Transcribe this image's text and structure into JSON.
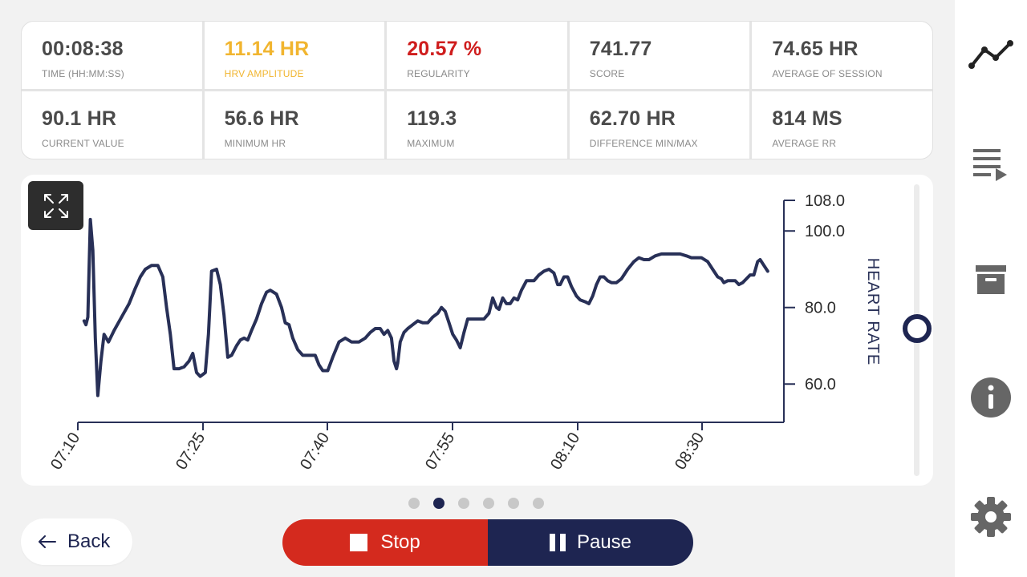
{
  "stats": [
    {
      "value": "00:08:38",
      "label": "TIME (HH:MM:SS)"
    },
    {
      "value": "11.14 HR",
      "label": "HRV AMPLITUDE"
    },
    {
      "value": "20.57 %",
      "label": "REGULARITY"
    },
    {
      "value": "741.77",
      "label": "SCORE"
    },
    {
      "value": "74.65 HR",
      "label": "AVERAGE OF SESSION"
    },
    {
      "value": "90.1 HR",
      "label": "CURRENT VALUE"
    },
    {
      "value": "56.6 HR",
      "label": "MINIMUM HR"
    },
    {
      "value": "119.3",
      "label": "MAXIMUM"
    },
    {
      "value": "62.70 HR",
      "label": "DIFFERENCE MIN/MAX"
    },
    {
      "value": "814 MS",
      "label": "AVERAGE RR"
    }
  ],
  "colors": {
    "accent_yellow": "#f1b52f",
    "accent_red": "#cf1d1d",
    "navy": "#1e2551",
    "stop_red": "#d42a1e"
  },
  "chart_data": {
    "type": "line",
    "ylabel": "HEART RATE",
    "ylim": [
      50,
      108
    ],
    "yticks": [
      "108.0",
      "100.0",
      "80.0",
      "60.0"
    ],
    "xticks": [
      "07:10",
      "07:25",
      "07:40",
      "07:55",
      "08:10",
      "08:30"
    ],
    "series": [
      {
        "color": "#283057",
        "points": [
          [
            7.0,
            76.5
          ],
          [
            7.15,
            75.5
          ],
          [
            7.3,
            77.5
          ],
          [
            7.5,
            103
          ],
          [
            7.7,
            95
          ],
          [
            7.9,
            72
          ],
          [
            8.1,
            57
          ],
          [
            8.35,
            66
          ],
          [
            8.6,
            73
          ],
          [
            8.95,
            71
          ],
          [
            9.4,
            74
          ],
          [
            10.0,
            77.5
          ],
          [
            10.6,
            81
          ],
          [
            11.1,
            85
          ],
          [
            11.5,
            88
          ],
          [
            11.9,
            90
          ],
          [
            12.4,
            91
          ],
          [
            12.9,
            91
          ],
          [
            13.3,
            88
          ],
          [
            13.6,
            80
          ],
          [
            13.9,
            73
          ],
          [
            14.2,
            64
          ],
          [
            14.6,
            64
          ],
          [
            15.0,
            64.5
          ],
          [
            15.4,
            66
          ],
          [
            15.7,
            68
          ],
          [
            16.0,
            63
          ],
          [
            16.3,
            62
          ],
          [
            16.7,
            63
          ],
          [
            16.95,
            73
          ],
          [
            17.2,
            89.5
          ],
          [
            17.6,
            90
          ],
          [
            17.9,
            86
          ],
          [
            18.2,
            78
          ],
          [
            18.5,
            67
          ],
          [
            18.8,
            67.5
          ],
          [
            19.2,
            70
          ],
          [
            19.5,
            71.5
          ],
          [
            19.8,
            72
          ],
          [
            20.1,
            71.5
          ],
          [
            20.4,
            74
          ],
          [
            20.8,
            77
          ],
          [
            21.2,
            81
          ],
          [
            21.6,
            84
          ],
          [
            21.9,
            84.5
          ],
          [
            22.4,
            83.5
          ],
          [
            22.8,
            80
          ],
          [
            23.1,
            76
          ],
          [
            23.4,
            75.5
          ],
          [
            23.7,
            72
          ],
          [
            24.1,
            69
          ],
          [
            24.5,
            67.5
          ],
          [
            25.0,
            67.5
          ],
          [
            25.5,
            67.5
          ],
          [
            25.8,
            65
          ],
          [
            26.1,
            63.5
          ],
          [
            26.5,
            63.5
          ],
          [
            26.9,
            67
          ],
          [
            27.4,
            71
          ],
          [
            27.9,
            72
          ],
          [
            28.4,
            71
          ],
          [
            29.0,
            71
          ],
          [
            29.5,
            72
          ],
          [
            29.9,
            73.5
          ],
          [
            30.3,
            74.5
          ],
          [
            30.7,
            74.5
          ],
          [
            31.0,
            73
          ],
          [
            31.3,
            74
          ],
          [
            31.6,
            72
          ],
          [
            31.8,
            66
          ],
          [
            32.0,
            64
          ],
          [
            32.1,
            65.5
          ],
          [
            32.3,
            71
          ],
          [
            32.6,
            73.5
          ],
          [
            32.9,
            74.5
          ],
          [
            33.3,
            75.5
          ],
          [
            33.7,
            76.5
          ],
          [
            34.1,
            76
          ],
          [
            34.5,
            76
          ],
          [
            34.9,
            77.5
          ],
          [
            35.3,
            78.5
          ],
          [
            35.6,
            80
          ],
          [
            35.9,
            79
          ],
          [
            36.2,
            76
          ],
          [
            36.5,
            73
          ],
          [
            36.8,
            71.5
          ],
          [
            37.1,
            69.5
          ],
          [
            37.4,
            73.5
          ],
          [
            37.7,
            77
          ],
          [
            38.0,
            77
          ],
          [
            38.3,
            77
          ],
          [
            38.7,
            77
          ],
          [
            39.0,
            77
          ],
          [
            39.4,
            78.5
          ],
          [
            39.7,
            82.5
          ],
          [
            40.0,
            80
          ],
          [
            40.2,
            79.5
          ],
          [
            40.5,
            82.5
          ],
          [
            40.8,
            81
          ],
          [
            41.1,
            81
          ],
          [
            41.4,
            82.5
          ],
          [
            41.7,
            82
          ],
          [
            42.0,
            84.5
          ],
          [
            42.4,
            87
          ],
          [
            42.7,
            87
          ],
          [
            43.0,
            87
          ],
          [
            43.4,
            88.5
          ],
          [
            43.8,
            89.5
          ],
          [
            44.2,
            90
          ],
          [
            44.6,
            89
          ],
          [
            44.9,
            86
          ],
          [
            45.1,
            86
          ],
          [
            45.4,
            88
          ],
          [
            45.7,
            88
          ],
          [
            46.0,
            85.5
          ],
          [
            46.4,
            83
          ],
          [
            46.7,
            82
          ],
          [
            47.1,
            81.5
          ],
          [
            47.4,
            81
          ],
          [
            47.7,
            83
          ],
          [
            48.0,
            86
          ],
          [
            48.3,
            88
          ],
          [
            48.6,
            88
          ],
          [
            48.9,
            87
          ],
          [
            49.2,
            86.5
          ],
          [
            49.6,
            86.5
          ],
          [
            50.0,
            87.5
          ],
          [
            50.5,
            90
          ],
          [
            51.0,
            92
          ],
          [
            51.4,
            93
          ],
          [
            51.8,
            92.5
          ],
          [
            52.2,
            92.5
          ],
          [
            52.7,
            93.5
          ],
          [
            53.2,
            94
          ],
          [
            53.7,
            94
          ],
          [
            54.2,
            94
          ],
          [
            54.7,
            94
          ],
          [
            55.2,
            93.5
          ],
          [
            55.6,
            93
          ],
          [
            56.0,
            93
          ],
          [
            56.4,
            93
          ],
          [
            56.9,
            92
          ],
          [
            57.3,
            90
          ],
          [
            57.7,
            88
          ],
          [
            58.0,
            87.5
          ],
          [
            58.2,
            86.5
          ],
          [
            58.5,
            87
          ],
          [
            58.8,
            87
          ],
          [
            59.1,
            87
          ],
          [
            59.4,
            86
          ],
          [
            59.7,
            86.5
          ],
          [
            60.0,
            87.5
          ],
          [
            60.3,
            88.5
          ],
          [
            60.6,
            88.5
          ],
          [
            60.9,
            92
          ],
          [
            61.1,
            92.5
          ],
          [
            61.4,
            91
          ],
          [
            61.7,
            89.5
          ]
        ]
      }
    ]
  },
  "nav": {
    "back": "Back",
    "stop": "Stop",
    "pause": "Pause"
  },
  "pagination": {
    "count": 6,
    "active": 1
  },
  "sidebar": {
    "icons": [
      "line-chart-icon",
      "playlist-icon",
      "archive-icon",
      "info-icon",
      "settings-gear-icon"
    ]
  }
}
